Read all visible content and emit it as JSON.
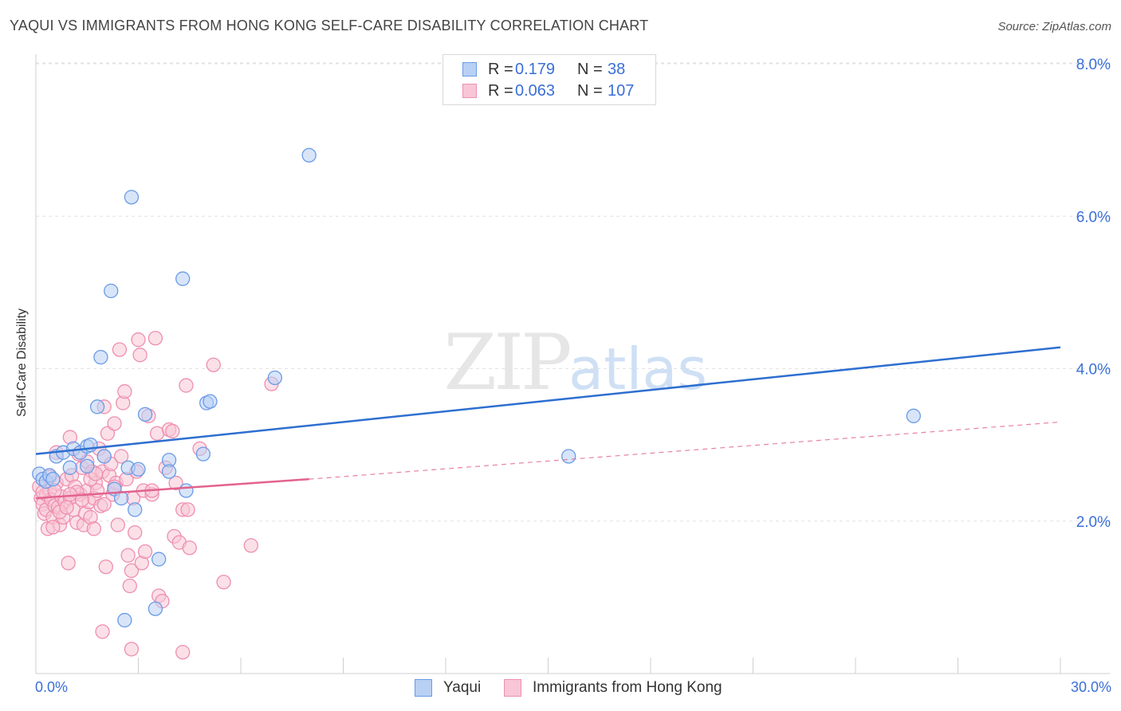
{
  "header": {
    "title": "YAQUI VS IMMIGRANTS FROM HONG KONG SELF-CARE DISABILITY CORRELATION CHART",
    "source": "Source: ZipAtlas.com"
  },
  "watermark": {
    "zip": "ZIP",
    "atlas": "atlas"
  },
  "legend": {
    "rows": [
      {
        "r_label": "R =",
        "r_value": "0.179",
        "n_label": "N =",
        "n_value": "38"
      },
      {
        "r_label": "R =",
        "r_value": "0.063",
        "n_label": "N =",
        "n_value": "107"
      }
    ],
    "bottom": [
      "Yaqui",
      "Immigrants from Hong Kong"
    ]
  },
  "colors": {
    "blue": "#6a9be6",
    "blue_fill": "#b8d0f4",
    "blue_line": "#2e6fd0",
    "pink": "#ee8fb0",
    "pink_fill": "#f8c6d6",
    "pink_line": "#e2628e",
    "grid": "#e2e2e2",
    "tick_text": "#3a6fd8"
  },
  "chart_data": {
    "type": "scatter",
    "title": "YAQUI VS IMMIGRANTS FROM HONG KONG SELF-CARE DISABILITY CORRELATION CHART",
    "xlabel": "",
    "ylabel": "Self-Care Disability",
    "xlim": [
      0,
      30
    ],
    "ylim": [
      0,
      8
    ],
    "x_tick_labels": [
      "0.0%",
      "30.0%"
    ],
    "y_ticks": [
      2,
      4,
      6,
      8
    ],
    "y_tick_labels": [
      "2.0%",
      "4.0%",
      "6.0%",
      "8.0%"
    ],
    "grid": true,
    "series": [
      {
        "name": "Yaqui",
        "r": 0.179,
        "n": 38,
        "trend": {
          "x0": 0,
          "y0": 2.88,
          "x1": 30,
          "y1": 4.28,
          "style": "solid"
        },
        "points": [
          [
            0.1,
            2.62
          ],
          [
            0.2,
            2.55
          ],
          [
            0.3,
            2.52
          ],
          [
            0.4,
            2.6
          ],
          [
            0.5,
            2.55
          ],
          [
            0.6,
            2.85
          ],
          [
            0.8,
            2.9
          ],
          [
            1.0,
            2.7
          ],
          [
            1.1,
            2.95
          ],
          [
            1.3,
            2.9
          ],
          [
            1.5,
            2.98
          ],
          [
            1.5,
            2.72
          ],
          [
            1.6,
            3.0
          ],
          [
            1.8,
            3.5
          ],
          [
            1.9,
            4.15
          ],
          [
            2.0,
            2.85
          ],
          [
            2.2,
            5.02
          ],
          [
            2.3,
            2.42
          ],
          [
            2.5,
            2.3
          ],
          [
            2.7,
            2.7
          ],
          [
            2.8,
            6.25
          ],
          [
            2.9,
            2.15
          ],
          [
            3.0,
            2.68
          ],
          [
            3.2,
            3.4
          ],
          [
            3.5,
            0.85
          ],
          [
            3.6,
            1.5
          ],
          [
            3.9,
            2.8
          ],
          [
            3.9,
            2.65
          ],
          [
            4.3,
            5.18
          ],
          [
            4.4,
            2.4
          ],
          [
            4.9,
            2.88
          ],
          [
            5.0,
            3.55
          ],
          [
            5.1,
            3.57
          ],
          [
            2.6,
            0.7
          ],
          [
            7.0,
            3.88
          ],
          [
            8.0,
            6.8
          ],
          [
            15.6,
            2.85
          ],
          [
            25.7,
            3.38
          ]
        ]
      },
      {
        "name": "Immigrants from Hong Kong",
        "r": 0.063,
        "n": 107,
        "trend": {
          "x0": 0,
          "y0": 2.3,
          "x1": 8.0,
          "y1": 2.55,
          "style": "solid",
          "extension": {
            "x0": 8.0,
            "y0": 2.55,
            "x1": 30,
            "y1": 3.3,
            "style": "dashed"
          }
        },
        "points": [
          [
            0.1,
            2.45
          ],
          [
            0.15,
            2.3
          ],
          [
            0.2,
            2.22
          ],
          [
            0.25,
            2.1
          ],
          [
            0.3,
            2.35
          ],
          [
            0.3,
            2.15
          ],
          [
            0.35,
            1.9
          ],
          [
            0.4,
            2.4
          ],
          [
            0.45,
            2.28
          ],
          [
            0.5,
            2.05
          ],
          [
            0.55,
            2.2
          ],
          [
            0.6,
            2.5
          ],
          [
            0.6,
            2.9
          ],
          [
            0.65,
            2.18
          ],
          [
            0.7,
            1.95
          ],
          [
            0.75,
            2.32
          ],
          [
            0.8,
            2.05
          ],
          [
            0.85,
            2.25
          ],
          [
            0.9,
            2.55
          ],
          [
            0.95,
            1.45
          ],
          [
            1.0,
            2.3
          ],
          [
            1.0,
            3.1
          ],
          [
            1.05,
            2.6
          ],
          [
            1.1,
            2.15
          ],
          [
            1.15,
            2.45
          ],
          [
            1.2,
            1.98
          ],
          [
            1.25,
            2.88
          ],
          [
            1.3,
            2.35
          ],
          [
            1.35,
            2.7
          ],
          [
            1.4,
            1.95
          ],
          [
            1.45,
            2.1
          ],
          [
            1.5,
            2.4
          ],
          [
            1.5,
            2.78
          ],
          [
            1.55,
            2.25
          ],
          [
            1.6,
            2.05
          ],
          [
            1.65,
            2.65
          ],
          [
            1.7,
            2.3
          ],
          [
            1.7,
            1.9
          ],
          [
            1.75,
            2.5
          ],
          [
            1.8,
            2.4
          ],
          [
            1.85,
            2.95
          ],
          [
            1.9,
            2.2
          ],
          [
            1.95,
            2.65
          ],
          [
            2.0,
            2.85
          ],
          [
            2.0,
            3.5
          ],
          [
            2.05,
            1.4
          ],
          [
            2.1,
            3.15
          ],
          [
            2.15,
            2.6
          ],
          [
            2.2,
            2.75
          ],
          [
            2.25,
            2.35
          ],
          [
            2.3,
            3.28
          ],
          [
            2.35,
            2.5
          ],
          [
            2.4,
            1.95
          ],
          [
            2.45,
            4.25
          ],
          [
            2.5,
            2.85
          ],
          [
            2.55,
            3.55
          ],
          [
            2.6,
            3.7
          ],
          [
            2.65,
            2.55
          ],
          [
            2.7,
            1.55
          ],
          [
            2.75,
            1.15
          ],
          [
            2.8,
            1.35
          ],
          [
            2.85,
            2.3
          ],
          [
            2.9,
            1.85
          ],
          [
            2.95,
            2.65
          ],
          [
            3.0,
            4.38
          ],
          [
            3.05,
            4.18
          ],
          [
            3.1,
            1.45
          ],
          [
            3.15,
            2.4
          ],
          [
            3.2,
            1.6
          ],
          [
            3.3,
            3.38
          ],
          [
            3.4,
            2.35
          ],
          [
            3.5,
            4.4
          ],
          [
            3.55,
            3.15
          ],
          [
            3.6,
            1.02
          ],
          [
            3.7,
            0.95
          ],
          [
            3.8,
            2.7
          ],
          [
            3.9,
            3.2
          ],
          [
            4.0,
            3.18
          ],
          [
            4.05,
            1.8
          ],
          [
            4.1,
            2.5
          ],
          [
            4.2,
            1.72
          ],
          [
            4.3,
            2.15
          ],
          [
            4.4,
            3.78
          ],
          [
            4.45,
            2.15
          ],
          [
            4.5,
            1.65
          ],
          [
            4.8,
            2.95
          ],
          [
            5.2,
            4.05
          ],
          [
            5.5,
            1.2
          ],
          [
            6.3,
            1.68
          ],
          [
            6.9,
            3.8
          ],
          [
            1.95,
            0.55
          ],
          [
            2.8,
            0.32
          ],
          [
            4.3,
            0.28
          ],
          [
            1.2,
            2.38
          ],
          [
            0.4,
            2.58
          ],
          [
            0.7,
            2.12
          ],
          [
            1.6,
            2.55
          ],
          [
            2.3,
            2.45
          ],
          [
            0.5,
            1.92
          ],
          [
            3.4,
            2.4
          ],
          [
            2.0,
            2.22
          ],
          [
            1.0,
            2.35
          ],
          [
            0.2,
            2.38
          ],
          [
            0.55,
            2.4
          ],
          [
            0.9,
            2.18
          ],
          [
            1.35,
            2.28
          ],
          [
            1.75,
            2.62
          ]
        ]
      }
    ]
  }
}
